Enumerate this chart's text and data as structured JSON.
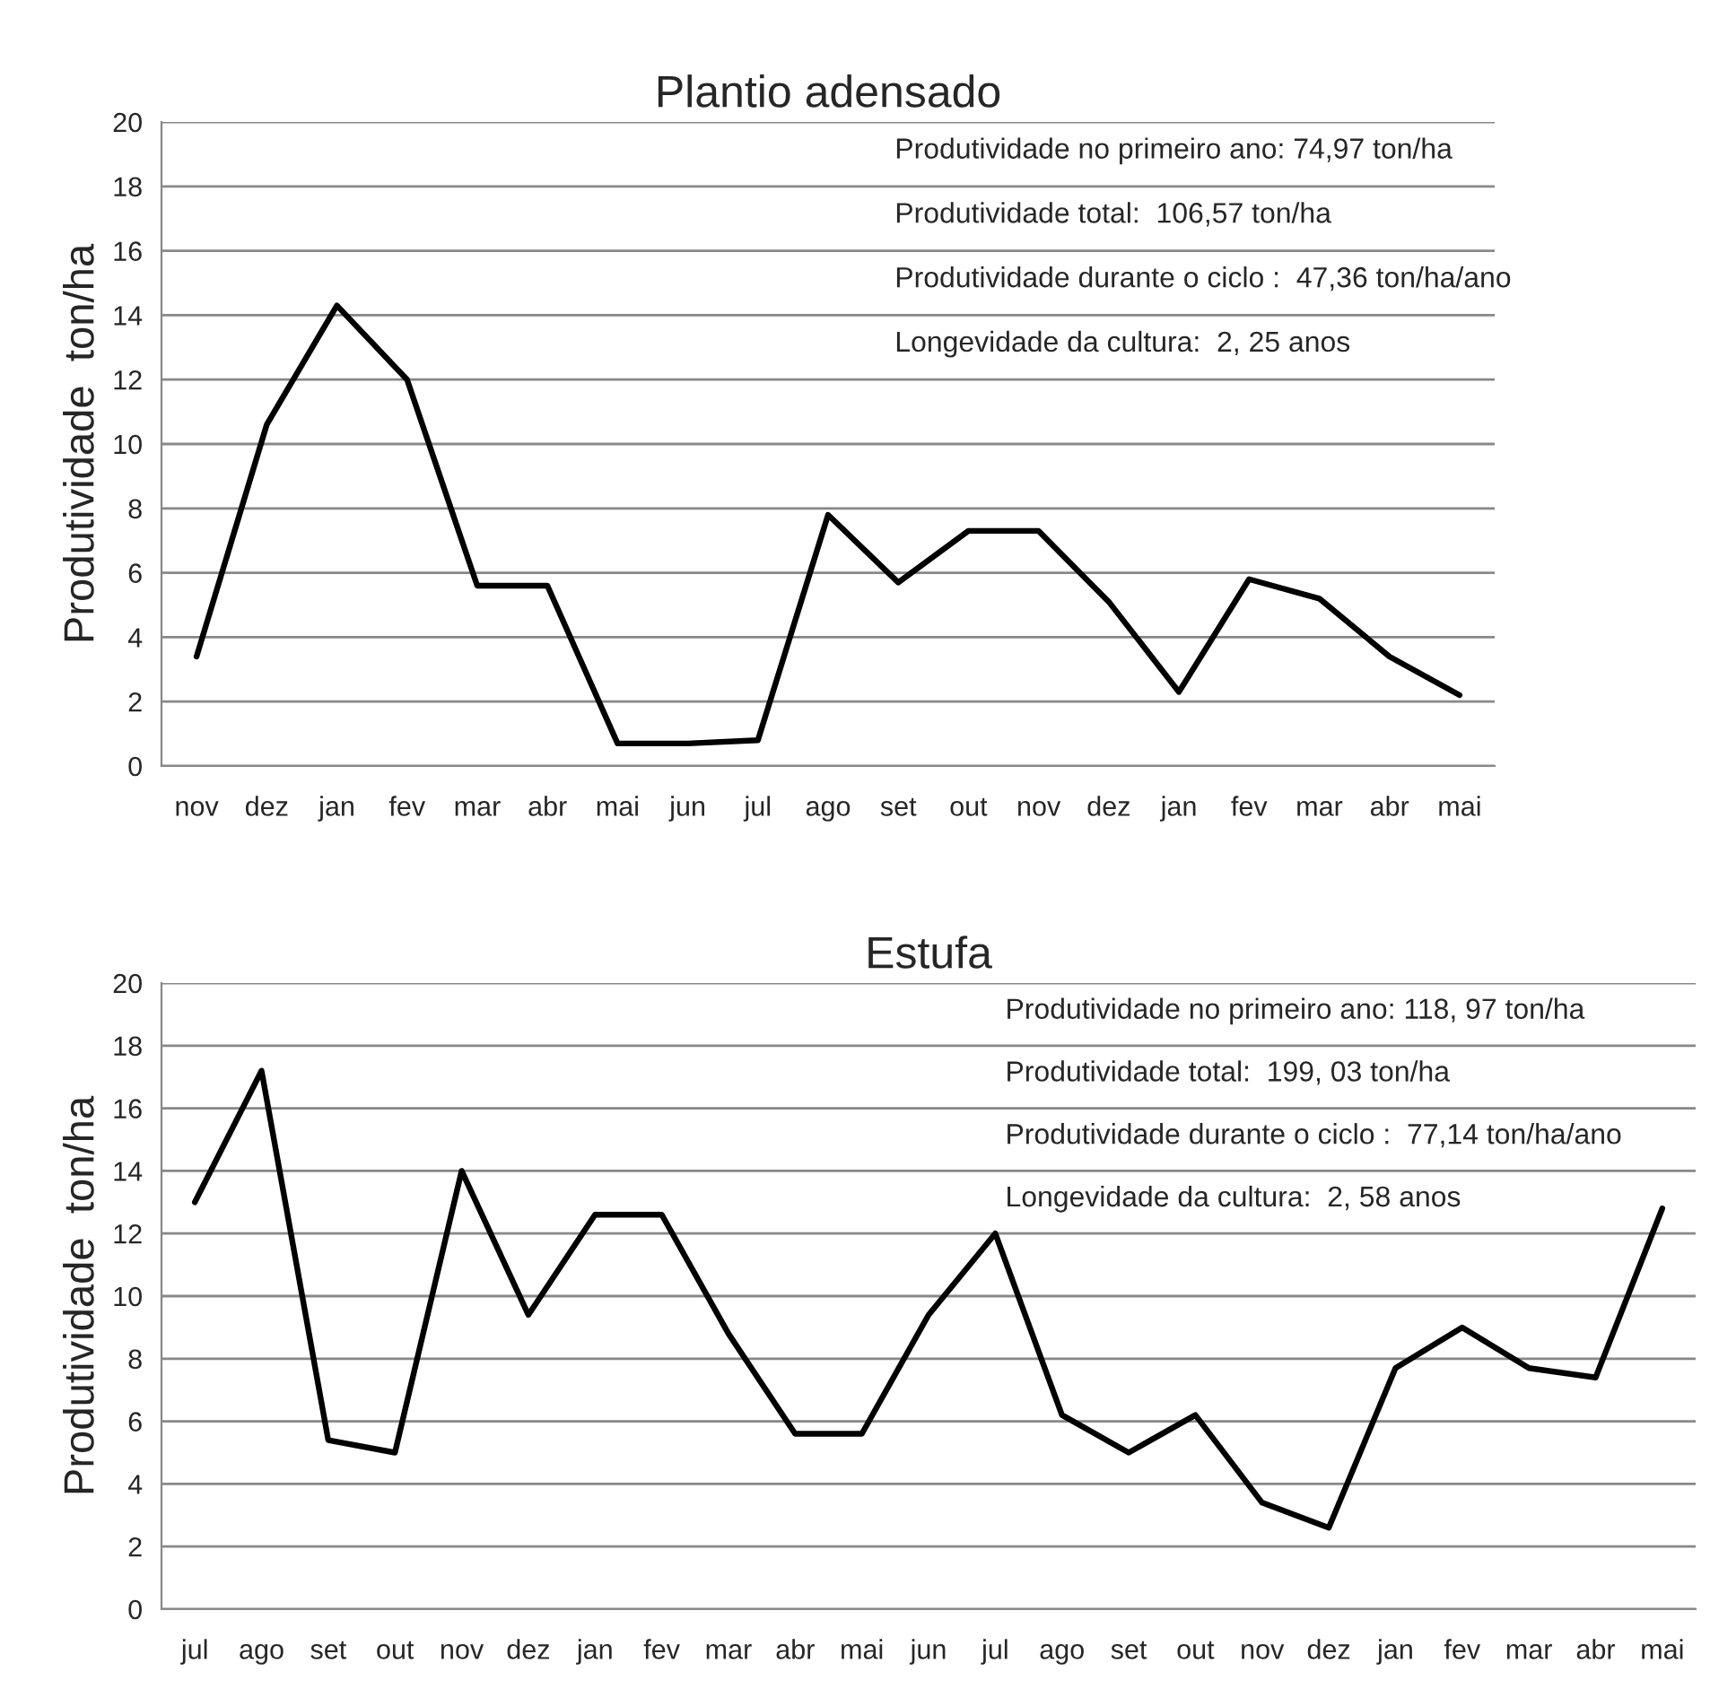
{
  "chart_data": [
    {
      "type": "line",
      "title": "Plantio adensado",
      "ylabel": "Produtividade  ton/ha",
      "categories": [
        "nov",
        "dez",
        "jan",
        "fev",
        "mar",
        "abr",
        "mai",
        "jun",
        "jul",
        "ago",
        "set",
        "out",
        "nov",
        "dez",
        "jan",
        "fev",
        "mar",
        "abr",
        "mai"
      ],
      "series": [
        {
          "color": "#000000",
          "values": [
            3.4,
            10.6,
            14.3,
            12.0,
            5.6,
            5.6,
            0.7,
            0.7,
            0.8,
            7.8,
            5.7,
            7.3,
            7.3,
            5.1,
            2.3,
            5.8,
            5.2,
            3.4,
            2.2
          ]
        }
      ],
      "ylim": [
        0,
        20
      ],
      "yticks": [
        0,
        2,
        4,
        6,
        8,
        10,
        12,
        14,
        16,
        18,
        20
      ],
      "grid": "y",
      "marker": "none",
      "line_style": "solid",
      "annotations": [
        "Produtividade no primeiro ano: 74,97 ton/ha",
        "Produtividade total:  106,57 ton/ha",
        "Produtividade durante o ciclo :  47,36 ton/ha/ano",
        "Longevidade da cultura:  2, 25 anos"
      ]
    },
    {
      "type": "line",
      "title": "Estufa",
      "ylabel": "Produtividade  ton/ha",
      "categories": [
        "jul",
        "ago",
        "set",
        "out",
        "nov",
        "dez",
        "jan",
        "fev",
        "mar",
        "abr",
        "mai",
        "jun",
        "jul",
        "ago",
        "set",
        "out",
        "nov",
        "dez",
        "jan",
        "fev",
        "mar",
        "abr",
        "mai"
      ],
      "series": [
        {
          "color": "#000000",
          "values": [
            13.0,
            17.2,
            5.4,
            5.0,
            14.0,
            9.4,
            12.6,
            12.6,
            8.8,
            5.6,
            5.6,
            9.4,
            12.0,
            6.2,
            5.0,
            6.2,
            3.4,
            2.6,
            7.7,
            9.0,
            7.7,
            7.4,
            12.8
          ]
        }
      ],
      "ylim": [
        0,
        20
      ],
      "yticks": [
        0,
        2,
        4,
        6,
        8,
        10,
        12,
        14,
        16,
        18,
        20
      ],
      "grid": "y",
      "marker": "none",
      "line_style": "solid",
      "annotations": [
        "Produtividade no primeiro ano: 118, 97 ton/ha",
        "Produtividade total:  199, 03 ton/ha",
        "Produtividade durante o ciclo :  77,14 ton/ha/ano",
        "Longevidade da cultura:  2, 58 anos"
      ]
    }
  ]
}
